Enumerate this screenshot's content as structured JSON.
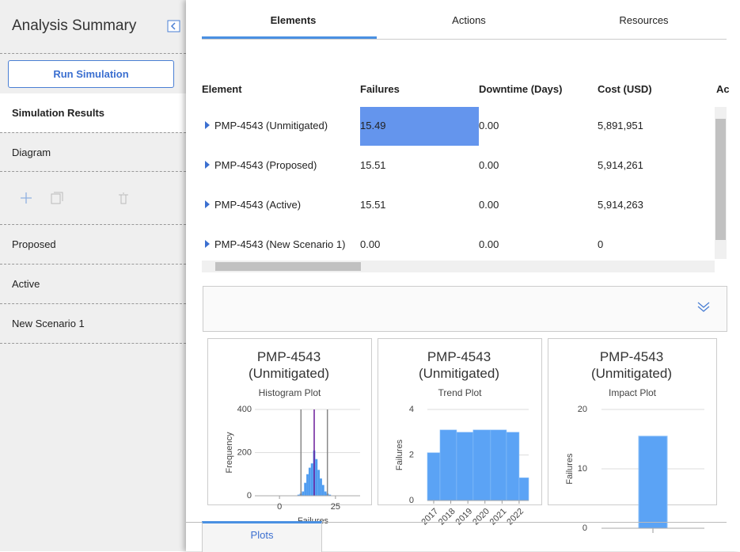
{
  "sidebar": {
    "title": "Analysis Summary",
    "run_button": "Run Simulation",
    "results": "Simulation Results",
    "diagram": "Diagram",
    "scenarios": [
      "Proposed",
      "Active",
      "New Scenario 1"
    ]
  },
  "tabs": [
    "Elements",
    "Actions",
    "Resources"
  ],
  "table": {
    "columns": [
      "Element",
      "Failures",
      "Downtime (Days)",
      "Cost (USD)",
      "Ac"
    ],
    "rows": [
      [
        "PMP-4543 (Unmitigated)",
        "15.49",
        "0.00",
        "5,891,951"
      ],
      [
        "PMP-4543 (Proposed)",
        "15.51",
        "0.00",
        "5,914,261"
      ],
      [
        "PMP-4543 (Active)",
        "15.51",
        "0.00",
        "5,914,263"
      ],
      [
        "PMP-4543 (New Scenario 1)",
        "0.00",
        "0.00",
        "0"
      ]
    ]
  },
  "plots": [
    {
      "type": "histogram",
      "title": "PMP-4543 (Unmitigated)",
      "subtitle": "Histogram Plot",
      "ylabel": "Frequency",
      "xlabel": "Failures",
      "color": "#4f9cf0",
      "bins": [
        8,
        9,
        10,
        11,
        12,
        13,
        14,
        15,
        16,
        17,
        18,
        19,
        20,
        21,
        22,
        23
      ],
      "counts": [
        5,
        10,
        20,
        60,
        100,
        130,
        150,
        210,
        170,
        120,
        80,
        50,
        20,
        10,
        5
      ],
      "xlim": [
        -11,
        36
      ],
      "xticks": [
        0,
        25
      ],
      "ylim": [
        0,
        400
      ],
      "yticks": [
        0,
        200,
        400
      ],
      "grid": true,
      "reference_lines": [
        {
          "value": 9.6,
          "color": "#888888"
        },
        {
          "value": 15.5,
          "color": "#6a1b9a"
        },
        {
          "value": 21.4,
          "color": "#888888"
        }
      ]
    },
    {
      "type": "step",
      "title": "PMP-4543 (Unmitigated)",
      "subtitle": "Trend Plot",
      "ylabel": "Failures",
      "color": "#5ba3f5",
      "bins": [
        2016.63,
        2017.37,
        2018.34,
        2019.31,
        2020.33,
        2021.26,
        2022.0,
        2022.56
      ],
      "counts": [
        2.1,
        3.1,
        3.0,
        3.1,
        3.1,
        3.0,
        1.0
      ],
      "xlim": [
        2016.63,
        2022.56
      ],
      "xticks": [
        2017,
        2018,
        2019,
        2020,
        2021,
        2022
      ],
      "ylim": [
        0,
        4
      ],
      "yticks": [
        0,
        2,
        4
      ],
      "grid": true
    },
    {
      "type": "bar",
      "title": "PMP-4543 (Unmitigated)",
      "subtitle": "Impact Plot",
      "ylabel": "Failures",
      "color": "#5ba3f5",
      "categories": [
        null
      ],
      "values": [
        15.5
      ],
      "ylim": [
        0,
        20
      ],
      "yticks": [
        0,
        10,
        20
      ],
      "grid": true
    }
  ],
  "bottom_tab": "Plots"
}
